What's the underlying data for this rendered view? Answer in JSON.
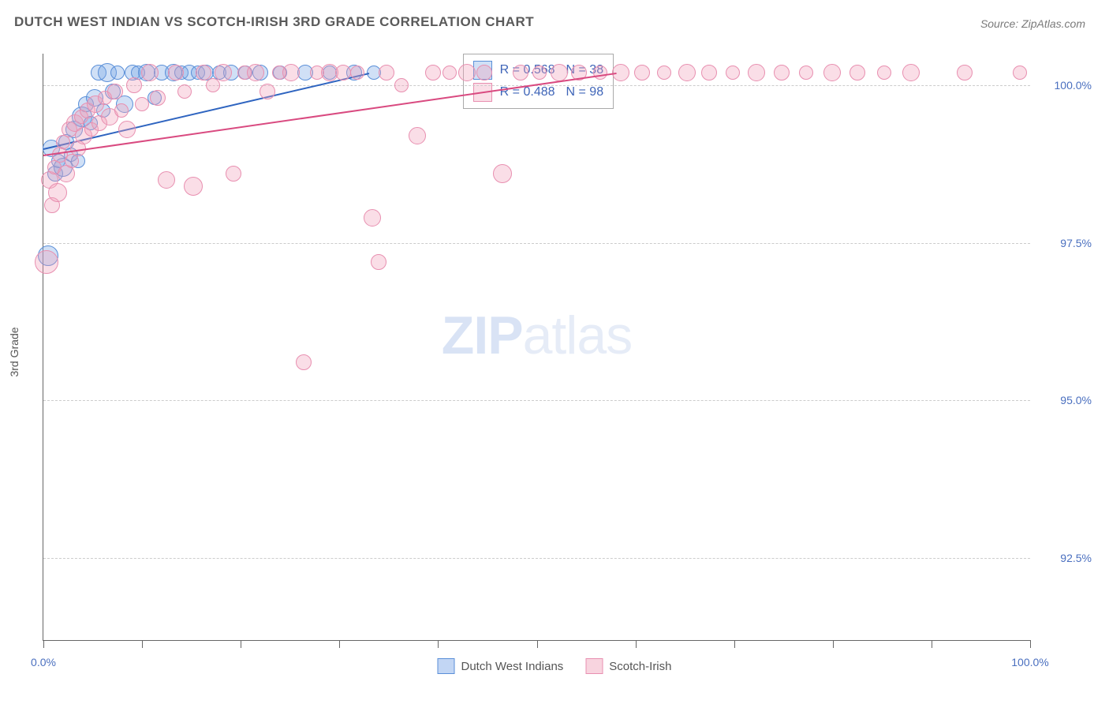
{
  "title": "DUTCH WEST INDIAN VS SCOTCH-IRISH 3RD GRADE CORRELATION CHART",
  "source": "Source: ZipAtlas.com",
  "ylabel": "3rd Grade",
  "watermark": {
    "part1": "ZIP",
    "part2": "atlas"
  },
  "chart": {
    "type": "scatter",
    "xlim": [
      0,
      100
    ],
    "ylim": [
      91.2,
      100.5
    ],
    "x_ticks": [
      0,
      10,
      20,
      30,
      40,
      50,
      60,
      70,
      80,
      90,
      100
    ],
    "x_tick_labels_shown": {
      "0": "0.0%",
      "100": "100.0%"
    },
    "y_gridlines": [
      92.5,
      95.0,
      97.5,
      100.0
    ],
    "y_tick_labels": {
      "92.5": "92.5%",
      "95.0": "95.0%",
      "97.5": "97.5%",
      "100.0": "100.0%"
    },
    "gridline_color": "#cccccc",
    "axis_color": "#666666",
    "label_color": "#4a6fbf",
    "background_color": "#ffffff"
  },
  "series": [
    {
      "name": "Dutch West Indians",
      "fill_color": "rgba(120,165,230,0.35)",
      "stroke_color": "#5a8fd8",
      "trend_color": "#2e64c0",
      "R": "0.568",
      "N": "38",
      "trend": {
        "x1": 0,
        "y1": 99.0,
        "x2": 33,
        "y2": 100.2
      },
      "points": [
        {
          "x": 0.5,
          "y": 97.3,
          "r": 12
        },
        {
          "x": 0.8,
          "y": 99.0,
          "r": 10
        },
        {
          "x": 1.2,
          "y": 98.6,
          "r": 9
        },
        {
          "x": 1.5,
          "y": 98.8,
          "r": 8
        },
        {
          "x": 2.0,
          "y": 98.7,
          "r": 11
        },
        {
          "x": 2.3,
          "y": 99.1,
          "r": 9
        },
        {
          "x": 2.8,
          "y": 98.9,
          "r": 8
        },
        {
          "x": 3.1,
          "y": 99.3,
          "r": 10
        },
        {
          "x": 3.5,
          "y": 98.8,
          "r": 8
        },
        {
          "x": 3.9,
          "y": 99.5,
          "r": 12
        },
        {
          "x": 4.3,
          "y": 99.7,
          "r": 9
        },
        {
          "x": 4.8,
          "y": 99.4,
          "r": 8
        },
        {
          "x": 5.2,
          "y": 99.8,
          "r": 10
        },
        {
          "x": 5.6,
          "y": 100.2,
          "r": 9
        },
        {
          "x": 6.1,
          "y": 99.6,
          "r": 8
        },
        {
          "x": 6.5,
          "y": 100.2,
          "r": 11
        },
        {
          "x": 7.0,
          "y": 99.9,
          "r": 9
        },
        {
          "x": 7.5,
          "y": 100.2,
          "r": 8
        },
        {
          "x": 8.2,
          "y": 99.7,
          "r": 10
        },
        {
          "x": 9.0,
          "y": 100.2,
          "r": 9
        },
        {
          "x": 9.6,
          "y": 100.2,
          "r": 8
        },
        {
          "x": 10.5,
          "y": 100.2,
          "r": 10
        },
        {
          "x": 11.3,
          "y": 99.8,
          "r": 8
        },
        {
          "x": 12.0,
          "y": 100.2,
          "r": 9
        },
        {
          "x": 13.2,
          "y": 100.2,
          "r": 10
        },
        {
          "x": 14.0,
          "y": 100.2,
          "r": 8
        },
        {
          "x": 14.8,
          "y": 100.2,
          "r": 9
        },
        {
          "x": 15.7,
          "y": 100.2,
          "r": 8
        },
        {
          "x": 16.5,
          "y": 100.2,
          "r": 9
        },
        {
          "x": 17.8,
          "y": 100.2,
          "r": 8
        },
        {
          "x": 19.0,
          "y": 100.2,
          "r": 9
        },
        {
          "x": 20.5,
          "y": 100.2,
          "r": 8
        },
        {
          "x": 22.0,
          "y": 100.2,
          "r": 9
        },
        {
          "x": 24.0,
          "y": 100.2,
          "r": 8
        },
        {
          "x": 26.5,
          "y": 100.2,
          "r": 9
        },
        {
          "x": 29.0,
          "y": 100.2,
          "r": 8
        },
        {
          "x": 31.5,
          "y": 100.2,
          "r": 9
        },
        {
          "x": 33.5,
          "y": 100.2,
          "r": 8
        }
      ]
    },
    {
      "name": "Scotch-Irish",
      "fill_color": "rgba(240,160,185,0.35)",
      "stroke_color": "#e88fb0",
      "trend_color": "#d94a80",
      "R": "0.488",
      "N": "98",
      "trend": {
        "x1": 0,
        "y1": 98.9,
        "x2": 58,
        "y2": 100.2
      },
      "points": [
        {
          "x": 0.3,
          "y": 97.2,
          "r": 14
        },
        {
          "x": 0.6,
          "y": 98.5,
          "r": 10
        },
        {
          "x": 0.9,
          "y": 98.1,
          "r": 9
        },
        {
          "x": 1.1,
          "y": 98.7,
          "r": 8
        },
        {
          "x": 1.4,
          "y": 98.3,
          "r": 11
        },
        {
          "x": 1.7,
          "y": 98.9,
          "r": 9
        },
        {
          "x": 2.0,
          "y": 99.1,
          "r": 8
        },
        {
          "x": 2.3,
          "y": 98.6,
          "r": 10
        },
        {
          "x": 2.6,
          "y": 99.3,
          "r": 9
        },
        {
          "x": 2.9,
          "y": 98.8,
          "r": 8
        },
        {
          "x": 3.2,
          "y": 99.4,
          "r": 10
        },
        {
          "x": 3.5,
          "y": 99.0,
          "r": 9
        },
        {
          "x": 3.8,
          "y": 99.5,
          "r": 8
        },
        {
          "x": 4.1,
          "y": 99.2,
          "r": 10
        },
        {
          "x": 4.5,
          "y": 99.6,
          "r": 9
        },
        {
          "x": 4.9,
          "y": 99.3,
          "r": 8
        },
        {
          "x": 5.3,
          "y": 99.7,
          "r": 10
        },
        {
          "x": 5.7,
          "y": 99.4,
          "r": 9
        },
        {
          "x": 6.2,
          "y": 99.8,
          "r": 8
        },
        {
          "x": 6.7,
          "y": 99.5,
          "r": 10
        },
        {
          "x": 7.3,
          "y": 99.9,
          "r": 9
        },
        {
          "x": 7.9,
          "y": 99.6,
          "r": 8
        },
        {
          "x": 8.5,
          "y": 99.3,
          "r": 10
        },
        {
          "x": 9.2,
          "y": 100.0,
          "r": 9
        },
        {
          "x": 10.0,
          "y": 99.7,
          "r": 8
        },
        {
          "x": 10.8,
          "y": 100.2,
          "r": 10
        },
        {
          "x": 11.6,
          "y": 99.8,
          "r": 9
        },
        {
          "x": 12.5,
          "y": 98.5,
          "r": 10
        },
        {
          "x": 13.4,
          "y": 100.2,
          "r": 9
        },
        {
          "x": 14.3,
          "y": 99.9,
          "r": 8
        },
        {
          "x": 15.2,
          "y": 98.4,
          "r": 11
        },
        {
          "x": 16.2,
          "y": 100.2,
          "r": 9
        },
        {
          "x": 17.2,
          "y": 100.0,
          "r": 8
        },
        {
          "x": 18.2,
          "y": 100.2,
          "r": 10
        },
        {
          "x": 19.3,
          "y": 98.6,
          "r": 9
        },
        {
          "x": 20.4,
          "y": 100.2,
          "r": 8
        },
        {
          "x": 21.5,
          "y": 100.2,
          "r": 10
        },
        {
          "x": 22.7,
          "y": 99.9,
          "r": 9
        },
        {
          "x": 23.9,
          "y": 100.2,
          "r": 8
        },
        {
          "x": 25.1,
          "y": 100.2,
          "r": 10
        },
        {
          "x": 26.4,
          "y": 95.6,
          "r": 9
        },
        {
          "x": 27.7,
          "y": 100.2,
          "r": 8
        },
        {
          "x": 29.0,
          "y": 100.2,
          "r": 10
        },
        {
          "x": 30.4,
          "y": 100.2,
          "r": 9
        },
        {
          "x": 31.8,
          "y": 100.2,
          "r": 8
        },
        {
          "x": 33.3,
          "y": 97.9,
          "r": 10
        },
        {
          "x": 34.8,
          "y": 100.2,
          "r": 9
        },
        {
          "x": 34.0,
          "y": 97.2,
          "r": 9
        },
        {
          "x": 36.3,
          "y": 100.0,
          "r": 8
        },
        {
          "x": 37.9,
          "y": 99.2,
          "r": 10
        },
        {
          "x": 39.5,
          "y": 100.2,
          "r": 9
        },
        {
          "x": 41.2,
          "y": 100.2,
          "r": 8
        },
        {
          "x": 42.9,
          "y": 100.2,
          "r": 10
        },
        {
          "x": 44.7,
          "y": 100.2,
          "r": 9
        },
        {
          "x": 46.5,
          "y": 98.6,
          "r": 11
        },
        {
          "x": 48.4,
          "y": 100.2,
          "r": 9
        },
        {
          "x": 50.3,
          "y": 100.2,
          "r": 8
        },
        {
          "x": 52.3,
          "y": 100.2,
          "r": 10
        },
        {
          "x": 54.3,
          "y": 100.2,
          "r": 9
        },
        {
          "x": 56.4,
          "y": 100.2,
          "r": 8
        },
        {
          "x": 58.5,
          "y": 100.2,
          "r": 10
        },
        {
          "x": 60.7,
          "y": 100.2,
          "r": 9
        },
        {
          "x": 62.9,
          "y": 100.2,
          "r": 8
        },
        {
          "x": 65.2,
          "y": 100.2,
          "r": 10
        },
        {
          "x": 67.5,
          "y": 100.2,
          "r": 9
        },
        {
          "x": 69.9,
          "y": 100.2,
          "r": 8
        },
        {
          "x": 72.3,
          "y": 100.2,
          "r": 10
        },
        {
          "x": 74.8,
          "y": 100.2,
          "r": 9
        },
        {
          "x": 77.3,
          "y": 100.2,
          "r": 8
        },
        {
          "x": 79.9,
          "y": 100.2,
          "r": 10
        },
        {
          "x": 82.5,
          "y": 100.2,
          "r": 9
        },
        {
          "x": 85.2,
          "y": 100.2,
          "r": 8
        },
        {
          "x": 87.9,
          "y": 100.2,
          "r": 10
        },
        {
          "x": 93.4,
          "y": 100.2,
          "r": 9
        },
        {
          "x": 99.0,
          "y": 100.2,
          "r": 8
        }
      ]
    }
  ],
  "bottom_legend": [
    {
      "label": "Dutch West Indians",
      "fill": "rgba(120,165,230,0.45)",
      "stroke": "#5a8fd8"
    },
    {
      "label": "Scotch-Irish",
      "fill": "rgba(240,160,185,0.45)",
      "stroke": "#e88fb0"
    }
  ]
}
